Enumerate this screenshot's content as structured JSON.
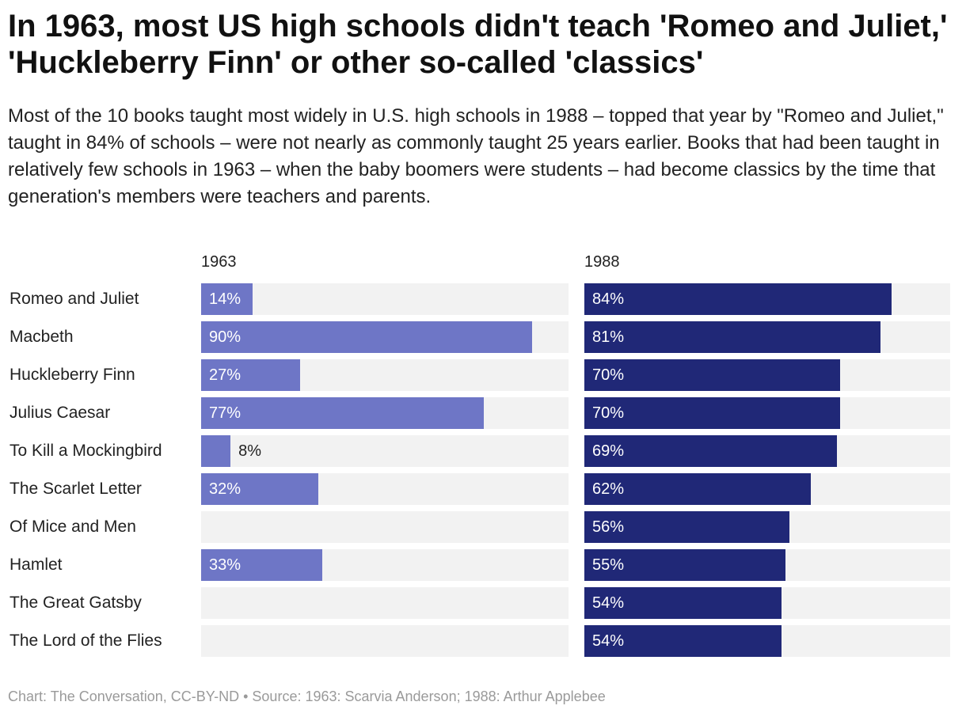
{
  "title": "In 1963, most US high schools didn't teach 'Romeo and Juliet,' 'Huckleberry Finn' or other so-called 'classics'",
  "subtitle": "Most of the 10 books taught most widely in U.S. high schools in 1988 – topped that year by \"Romeo and Juliet,\" taught in 84% of schools – were not nearly as commonly taught 25 years earlier. Books that had been taught in relatively few schools in 1963 – when the baby boomers were students – had become classics by the time that generation's members were teachers and parents.",
  "footer": "Chart: The Conversation, CC-BY-ND • Source: 1963: Scarvia Anderson; 1988: Arthur Applebee",
  "colors": {
    "s1963": "#6e76c6",
    "s1988": "#202877",
    "track": "#f2f2f2"
  },
  "chart_data": {
    "type": "bar",
    "orientation": "horizontal",
    "categories": [
      "Romeo and Juliet",
      "Macbeth",
      "Huckleberry Finn",
      "Julius Caesar",
      "To Kill a Mockingbird",
      "The Scarlet Letter",
      "Of Mice and Men",
      "Hamlet",
      "The Great Gatsby",
      "The Lord of the Flies"
    ],
    "series": [
      {
        "name": "1963",
        "values": [
          14,
          90,
          27,
          77,
          8,
          32,
          null,
          33,
          null,
          null
        ]
      },
      {
        "name": "1988",
        "values": [
          84,
          81,
          70,
          70,
          69,
          62,
          56,
          55,
          54,
          54
        ]
      }
    ],
    "xlim": [
      0,
      100
    ],
    "unit": "%"
  }
}
